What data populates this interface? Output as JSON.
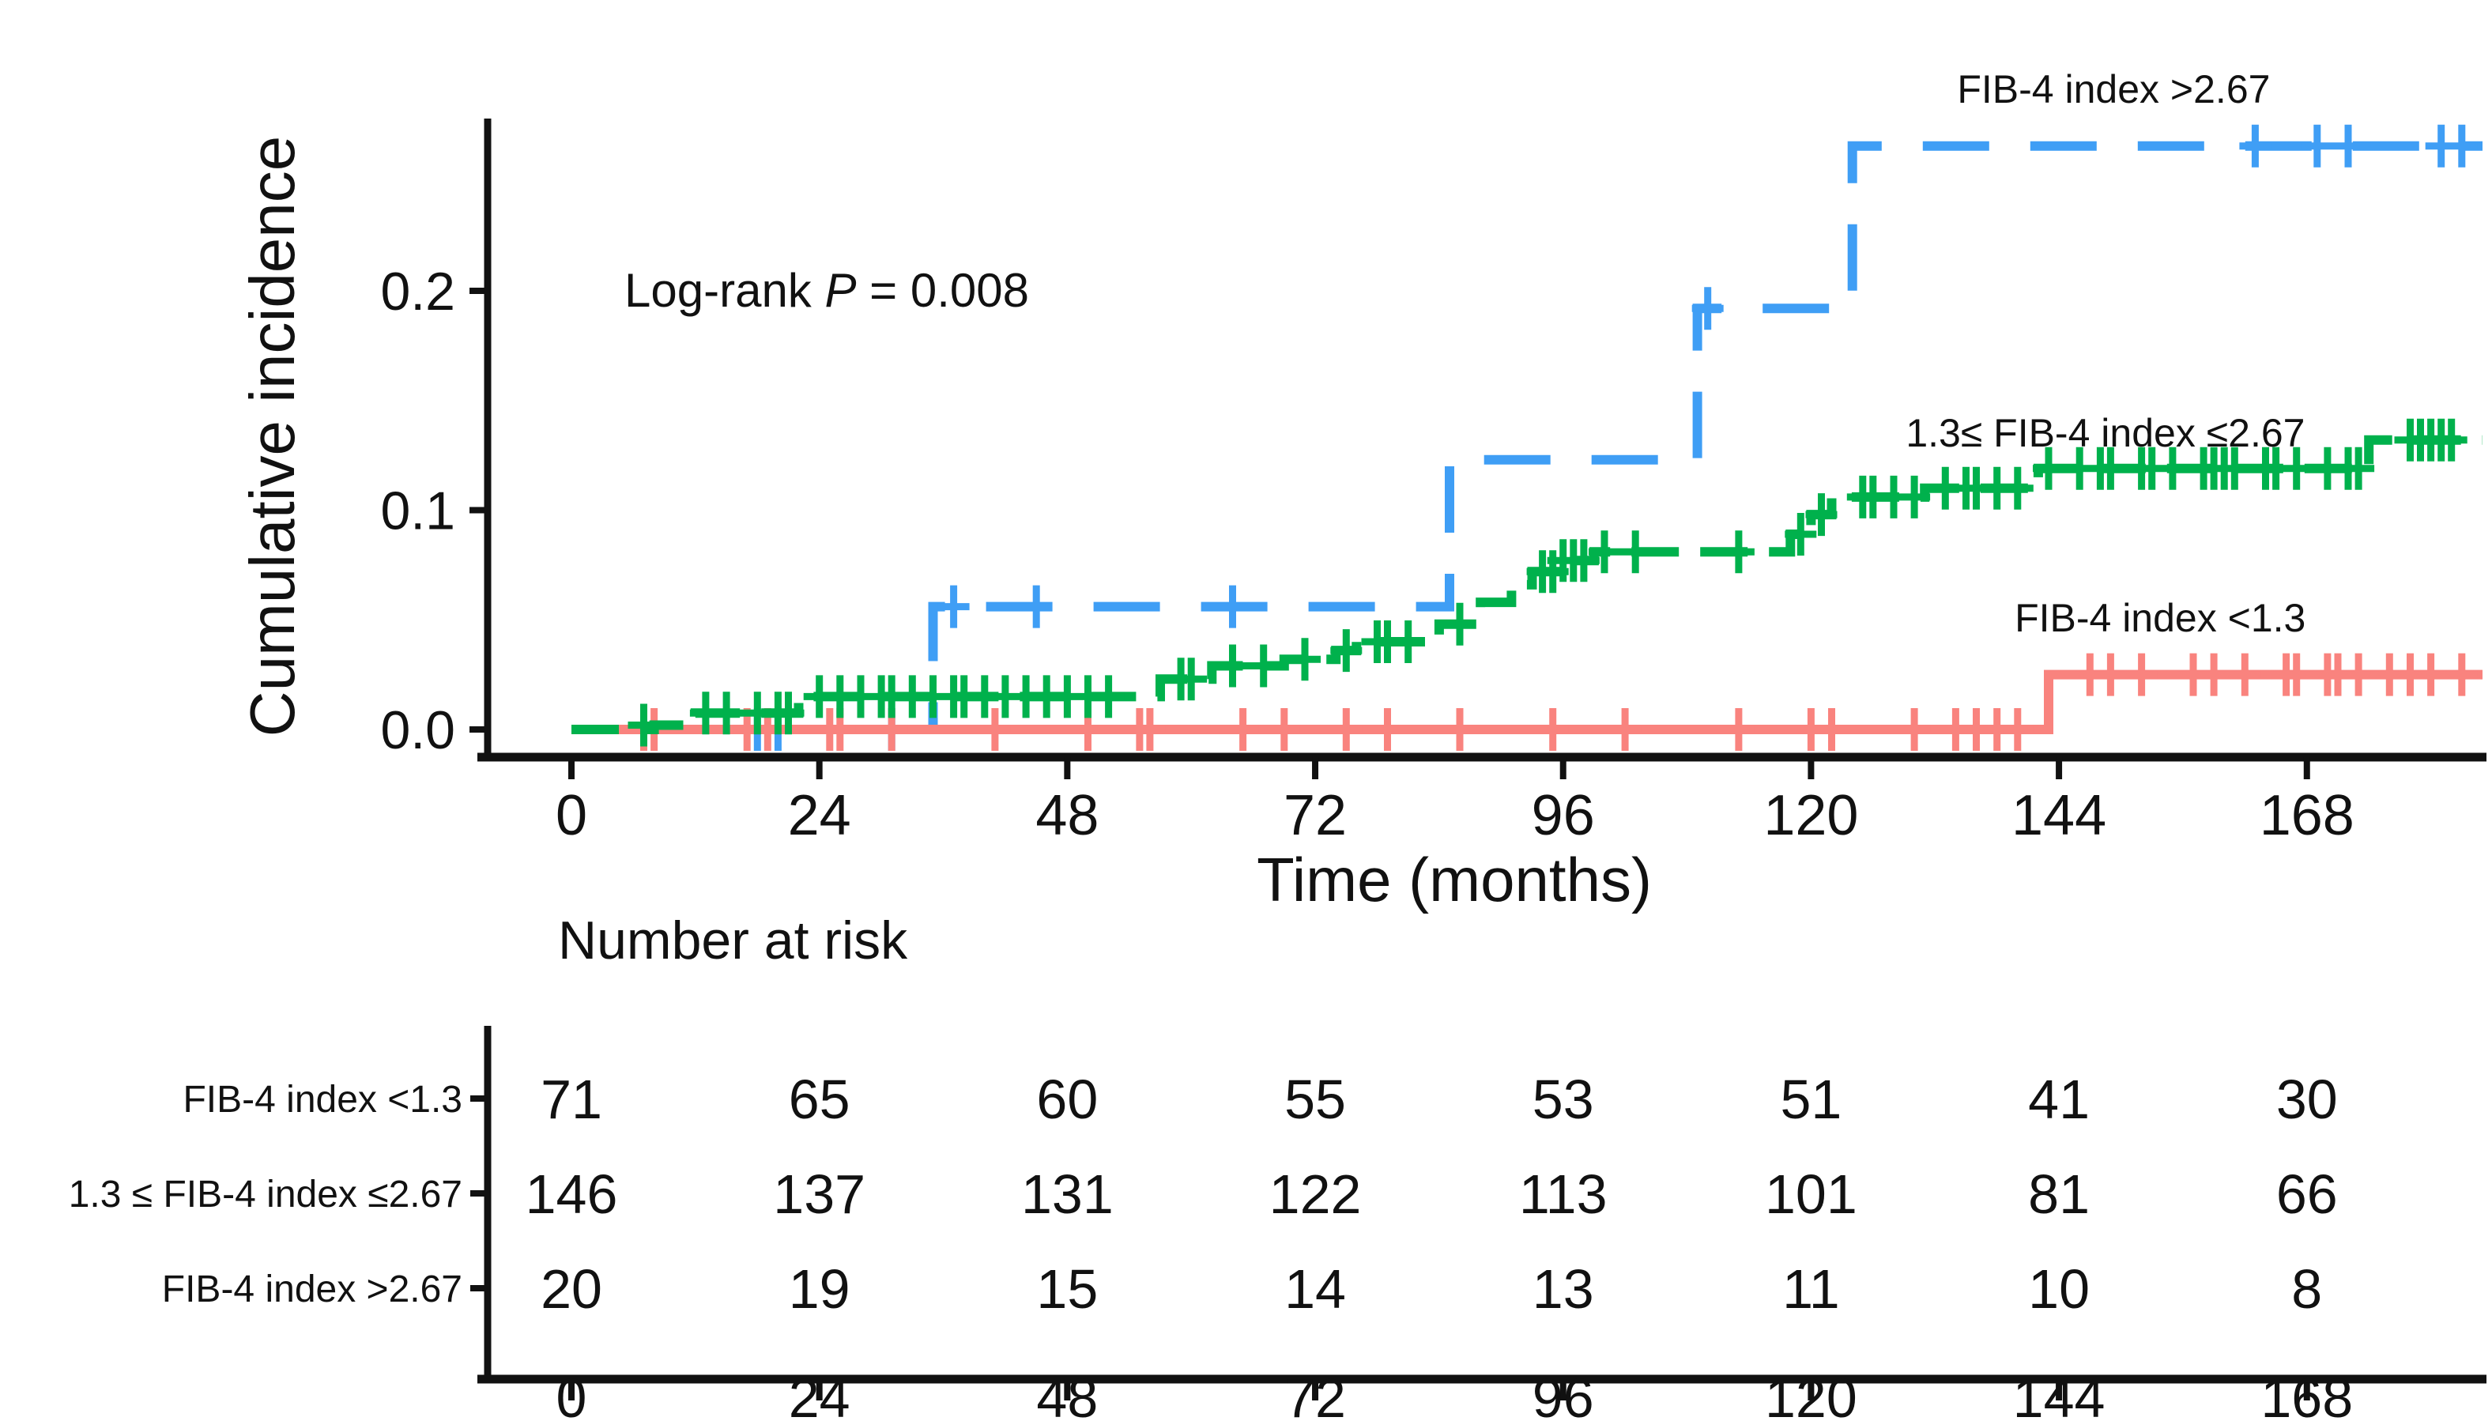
{
  "figure": {
    "background": "#ffffff",
    "text_color": "#111111",
    "annotation": {
      "text": "Log-rank P = 0.008",
      "prefix": "Log-rank ",
      "italic": "P",
      "suffix": " = 0.008"
    },
    "y_axis": {
      "label": "Cumulative incidence",
      "tick_labels": [
        "0.0",
        "0.1",
        "0.2"
      ],
      "tick_values": [
        0,
        0.1,
        0.2
      ]
    },
    "x_axis": {
      "label": "Time (months)",
      "tick_labels": [
        "0",
        "24",
        "48",
        "72",
        "96",
        "120",
        "144",
        "168"
      ],
      "tick_values": [
        0,
        24,
        48,
        72,
        96,
        120,
        144,
        168
      ]
    }
  },
  "chart_data": {
    "type": "line",
    "subtype": "kaplan-meier-cumulative-incidence-step-curves",
    "title": "",
    "xlabel": "Time (months)",
    "ylabel": "Cumulative incidence",
    "xlim": [
      -8,
      186
    ],
    "ylim": [
      -0.012,
      0.3
    ],
    "x_ticks": [
      0,
      24,
      48,
      72,
      96,
      120,
      144,
      168
    ],
    "y_ticks": [
      0,
      0.1,
      0.2
    ],
    "grid": false,
    "legend_position": "labels-next-to-curves",
    "annotation": "Log-rank P = 0.008",
    "series": [
      {
        "name": "FIB-4 index >2.67",
        "color": "#3F9EF5",
        "line_style": "long-dash",
        "label_t_center": 149.3,
        "steps": [
          [
            0,
            0
          ],
          [
            35,
            0.056
          ],
          [
            85,
            0.123
          ],
          [
            109,
            0.192
          ],
          [
            124,
            0.266
          ],
          [
            185,
            0.266
          ]
        ],
        "censors": [
          [
            18,
            0
          ],
          [
            20,
            0
          ],
          [
            31,
            0
          ],
          [
            37,
            0.056
          ],
          [
            45,
            0.056
          ],
          [
            64,
            0.056
          ],
          [
            110,
            0.192
          ],
          [
            163,
            0.266
          ],
          [
            169,
            0.266
          ],
          [
            172,
            0.266
          ],
          [
            181,
            0.266
          ],
          [
            183,
            0.266
          ]
        ]
      },
      {
        "name": "1.3≤ FIB-4 index ≤2.67",
        "color": "#00B14C",
        "line_style": "dash",
        "label_t_center": 148.5,
        "steps": [
          [
            0,
            0
          ],
          [
            8,
            0.002
          ],
          [
            12,
            0.0075
          ],
          [
            22,
            0.015
          ],
          [
            57,
            0.023
          ],
          [
            62,
            0.029
          ],
          [
            69,
            0.032
          ],
          [
            74,
            0.036
          ],
          [
            76,
            0.04
          ],
          [
            84,
            0.048
          ],
          [
            88,
            0.058
          ],
          [
            91,
            0.066
          ],
          [
            93,
            0.072
          ],
          [
            96,
            0.077
          ],
          [
            99,
            0.081
          ],
          [
            118,
            0.089
          ],
          [
            120,
            0.098
          ],
          [
            122,
            0.106
          ],
          [
            131,
            0.11
          ],
          [
            142,
            0.119
          ],
          [
            174,
            0.132
          ],
          [
            185,
            0.132
          ]
        ],
        "censors": [
          [
            7,
            0.002
          ],
          [
            13,
            0.0075
          ],
          [
            15,
            0.0075
          ],
          [
            18,
            0.0075
          ],
          [
            20,
            0.0075
          ],
          [
            21,
            0.0075
          ],
          [
            24,
            0.015
          ],
          [
            26,
            0.015
          ],
          [
            28,
            0.015
          ],
          [
            30,
            0.015
          ],
          [
            31,
            0.015
          ],
          [
            33,
            0.015
          ],
          [
            35,
            0.015
          ],
          [
            37,
            0.015
          ],
          [
            38,
            0.015
          ],
          [
            40,
            0.015
          ],
          [
            42,
            0.015
          ],
          [
            44,
            0.015
          ],
          [
            46,
            0.015
          ],
          [
            48,
            0.015
          ],
          [
            50,
            0.015
          ],
          [
            52,
            0.015
          ],
          [
            59,
            0.023
          ],
          [
            60,
            0.023
          ],
          [
            64,
            0.029
          ],
          [
            67,
            0.029
          ],
          [
            71,
            0.032
          ],
          [
            75,
            0.036
          ],
          [
            78,
            0.04
          ],
          [
            79,
            0.04
          ],
          [
            81,
            0.04
          ],
          [
            86,
            0.048
          ],
          [
            94,
            0.072
          ],
          [
            95,
            0.072
          ],
          [
            96,
            0.077
          ],
          [
            97,
            0.077
          ],
          [
            98,
            0.077
          ],
          [
            100,
            0.081
          ],
          [
            103,
            0.081
          ],
          [
            113,
            0.081
          ],
          [
            119,
            0.089
          ],
          [
            121,
            0.098
          ],
          [
            125,
            0.106
          ],
          [
            126,
            0.106
          ],
          [
            128,
            0.106
          ],
          [
            130,
            0.106
          ],
          [
            133,
            0.11
          ],
          [
            135,
            0.11
          ],
          [
            136,
            0.11
          ],
          [
            138,
            0.11
          ],
          [
            140,
            0.11
          ],
          [
            143,
            0.119
          ],
          [
            146,
            0.119
          ],
          [
            148,
            0.119
          ],
          [
            149,
            0.119
          ],
          [
            152,
            0.119
          ],
          [
            153,
            0.119
          ],
          [
            155,
            0.119
          ],
          [
            158,
            0.119
          ],
          [
            159,
            0.119
          ],
          [
            160,
            0.119
          ],
          [
            161,
            0.119
          ],
          [
            164,
            0.119
          ],
          [
            165,
            0.119
          ],
          [
            167,
            0.119
          ],
          [
            170,
            0.119
          ],
          [
            172,
            0.119
          ],
          [
            173,
            0.119
          ],
          [
            178,
            0.132
          ],
          [
            179,
            0.132
          ],
          [
            180,
            0.132
          ],
          [
            181,
            0.132
          ],
          [
            182,
            0.132
          ]
        ]
      },
      {
        "name": "FIB-4 index <1.3",
        "color": "#F9837E",
        "line_style": "solid",
        "label_t_center": 153.8,
        "steps": [
          [
            0,
            0
          ],
          [
            143,
            0.025
          ],
          [
            185,
            0.025
          ]
        ],
        "censors": [
          [
            7,
            0
          ],
          [
            8,
            0
          ],
          [
            17,
            0
          ],
          [
            19,
            0
          ],
          [
            25,
            0
          ],
          [
            26,
            0
          ],
          [
            31,
            0
          ],
          [
            41,
            0
          ],
          [
            50,
            0
          ],
          [
            55,
            0
          ],
          [
            56,
            0
          ],
          [
            65,
            0
          ],
          [
            69,
            0
          ],
          [
            75,
            0
          ],
          [
            79,
            0
          ],
          [
            86,
            0
          ],
          [
            95,
            0
          ],
          [
            102,
            0
          ],
          [
            113,
            0
          ],
          [
            120,
            0
          ],
          [
            122,
            0
          ],
          [
            130,
            0
          ],
          [
            134,
            0
          ],
          [
            136,
            0
          ],
          [
            138,
            0
          ],
          [
            140,
            0
          ],
          [
            147,
            0.025
          ],
          [
            149,
            0.025
          ],
          [
            152,
            0.025
          ],
          [
            157,
            0.025
          ],
          [
            159,
            0.025
          ],
          [
            162,
            0.025
          ],
          [
            166,
            0.025
          ],
          [
            167,
            0.025
          ],
          [
            170,
            0.025
          ],
          [
            171,
            0.025
          ],
          [
            173,
            0.025
          ],
          [
            176,
            0.025
          ],
          [
            178,
            0.025
          ],
          [
            180,
            0.025
          ],
          [
            183,
            0.025
          ]
        ]
      }
    ]
  },
  "risk_table": {
    "title": "Number at risk",
    "time_points": [
      0,
      24,
      48,
      72,
      96,
      120,
      144,
      168
    ],
    "time_labels": [
      "0",
      "24",
      "48",
      "72",
      "96",
      "120",
      "144",
      "168"
    ],
    "rows": [
      {
        "label": "FIB-4 index <1.3",
        "counts": [
          71,
          65,
          60,
          55,
          53,
          51,
          41,
          30
        ]
      },
      {
        "label": "1.3 ≤ FIB-4 index ≤2.67",
        "counts": [
          146,
          137,
          131,
          122,
          113,
          101,
          81,
          66
        ]
      },
      {
        "label": "FIB-4 index >2.67",
        "counts": [
          20,
          19,
          15,
          14,
          13,
          11,
          10,
          8
        ]
      }
    ]
  }
}
